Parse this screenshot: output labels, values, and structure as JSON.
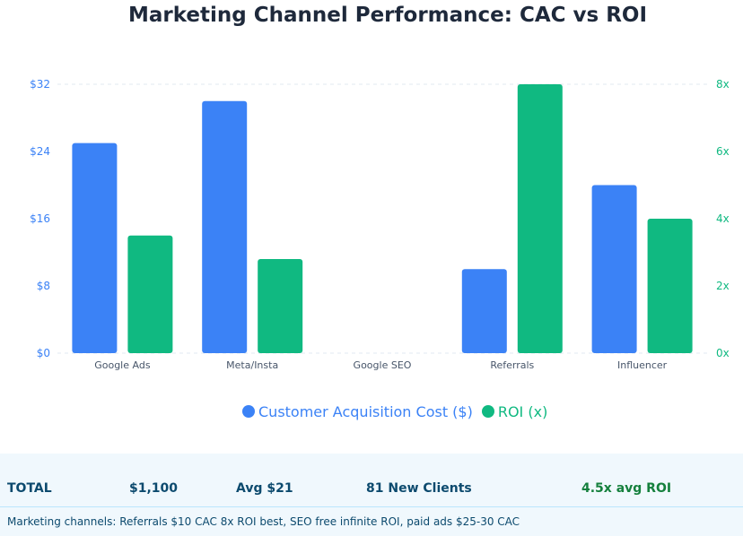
{
  "chart_data": {
    "type": "bar",
    "title": "Marketing Channel Performance: CAC vs ROI",
    "categories": [
      "Google Ads",
      "Meta/Insta",
      "Google SEO",
      "Referrals",
      "Influencer"
    ],
    "series": [
      {
        "name": "Customer Acquisition Cost ($)",
        "axis": "left",
        "color": "#3b82f6",
        "values": [
          25,
          30,
          0,
          10,
          20
        ]
      },
      {
        "name": "ROI (x)",
        "axis": "right",
        "color": "#10b981",
        "values": [
          3.5,
          2.8,
          0,
          8,
          4
        ]
      }
    ],
    "y_left": {
      "ticks": [
        "$0",
        "$8",
        "$16",
        "$24",
        "$32"
      ],
      "lim": [
        0,
        32
      ],
      "color": "#3b82f6"
    },
    "y_right": {
      "ticks": [
        "0x",
        "2x",
        "4x",
        "6x",
        "8x"
      ],
      "lim": [
        0,
        8
      ],
      "color": "#10b981"
    },
    "legend_position": "bottom",
    "grid": "top line only"
  },
  "summary": {
    "total_label": "TOTAL",
    "spend": "$1,100",
    "avg": "Avg $21",
    "clients": "81 New Clients",
    "roi": "4.5x avg ROI",
    "note": "Marketing channels: Referrals $10 CAC 8x ROI best, SEO free infinite ROI, paid ads $25-30 CAC"
  },
  "colors": {
    "title": "#1e293b",
    "summary_text": "#0c4a6e",
    "summary_bg": "#f0f8fd",
    "roi_text": "#15803d"
  }
}
